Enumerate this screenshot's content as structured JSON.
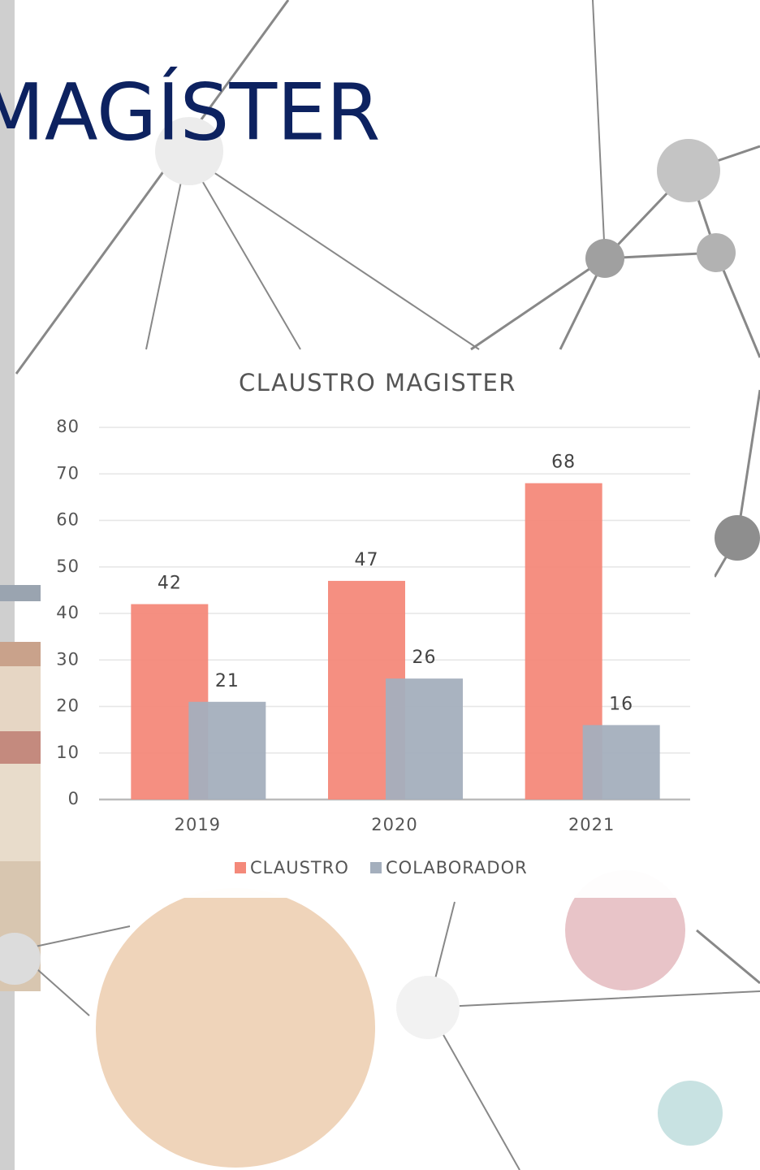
{
  "heading": "MAGÍSTER",
  "chart_data": {
    "type": "bar",
    "title": "CLAUSTRO MAGISTER",
    "categories": [
      "2019",
      "2020",
      "2021"
    ],
    "series": [
      {
        "name": "CLAUSTRO",
        "color": "#f4897a",
        "values": [
          42,
          47,
          68
        ]
      },
      {
        "name": "COLABORADOR",
        "color": "#a4afbd",
        "values": [
          21,
          26,
          16
        ]
      }
    ],
    "ylim": [
      0,
      80
    ],
    "yticks": [
      0,
      10,
      20,
      30,
      40,
      50,
      60,
      70,
      80
    ],
    "grid": true,
    "legend": "bottom"
  }
}
